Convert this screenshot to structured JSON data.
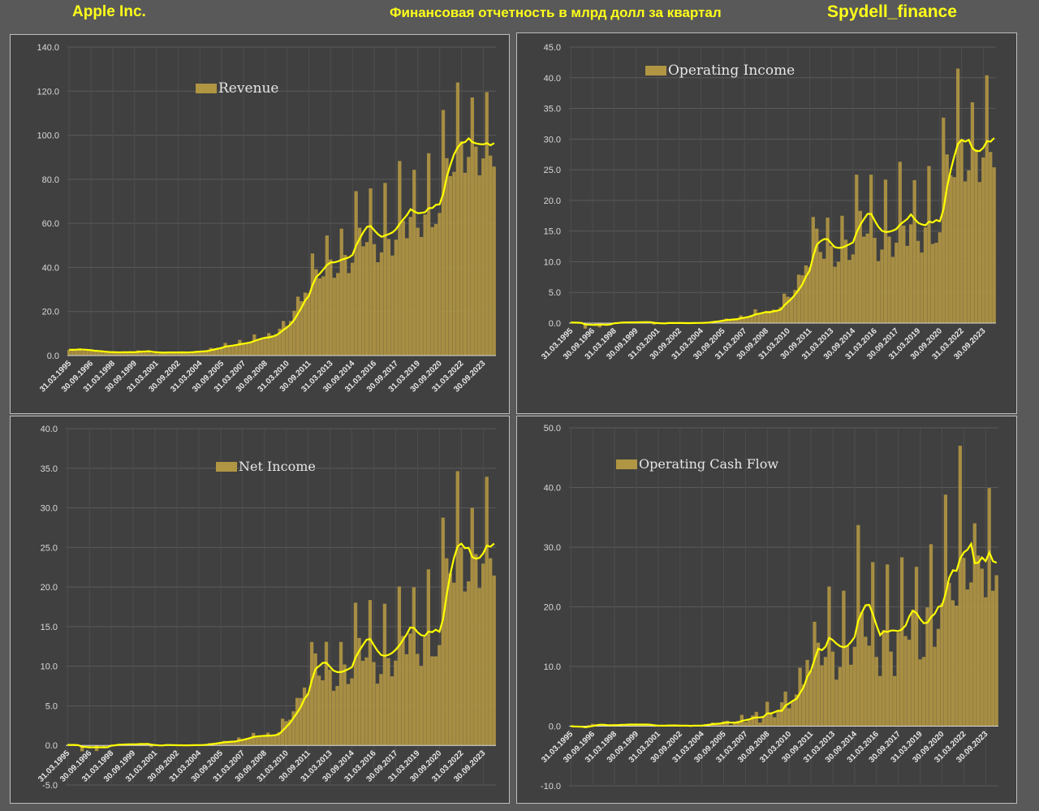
{
  "header": {
    "company": "Apple Inc.",
    "subtitle": "Финансовая отчетность в млрд долл за квартал",
    "source": "Spydell_finance"
  },
  "colors": {
    "bar": "#b09543",
    "moving_average": "#ffff00",
    "panel": "#404040",
    "background": "#595959"
  },
  "chart_data": [
    {
      "type": "bar",
      "title": "",
      "legend": "Revenue",
      "ylim": [
        0,
        140
      ],
      "ystep": 20,
      "y_tick_labels": [
        "0.0",
        "20.0",
        "40.0",
        "60.0",
        "80.0",
        "100.0",
        "120.0",
        "140.0"
      ],
      "x_tick_labels": [
        "31.03.1995",
        "30.09.1996",
        "31.03.1998",
        "30.09.1999",
        "31.03.2001",
        "30.09.2002",
        "31.03.2004",
        "30.09.2005",
        "31.03.2007",
        "30.09.2008",
        "31.03.2010",
        "30.09.2011",
        "31.03.2013",
        "30.09.2014",
        "31.03.2016",
        "30.09.2017",
        "31.03.2019",
        "30.09.2020",
        "31.03.2022",
        "30.09.2023"
      ],
      "moving_average_window": 4,
      "grid": true,
      "values": [
        2.65,
        2.58,
        2.83,
        3.15,
        2.19,
        2.18,
        2.32,
        2.13,
        1.6,
        1.74,
        1.61,
        1.58,
        1.41,
        1.4,
        1.56,
        1.71,
        1.53,
        1.56,
        1.34,
        2.34,
        1.95,
        1.83,
        1.87,
        1.01,
        1.43,
        1.48,
        1.45,
        1.38,
        1.5,
        1.43,
        1.44,
        1.47,
        1.48,
        1.55,
        1.72,
        2.01,
        1.91,
        2.01,
        2.35,
        3.49,
        3.24,
        3.52,
        3.68,
        5.75,
        4.36,
        4.37,
        4.84,
        7.12,
        5.26,
        5.41,
        6.22,
        9.61,
        7.51,
        7.46,
        7.9,
        10.17,
        9.08,
        9.73,
        12.21,
        15.68,
        13.5,
        15.7,
        20.34,
        26.74,
        24.67,
        28.57,
        28.27,
        46.33,
        39.19,
        35.02,
        35.97,
        54.51,
        43.6,
        35.32,
        37.47,
        57.59,
        45.65,
        37.43,
        42.12,
        74.6,
        58.01,
        49.61,
        51.5,
        75.87,
        50.56,
        42.36,
        46.85,
        78.35,
        52.9,
        45.41,
        52.58,
        88.29,
        61.14,
        53.27,
        62.9,
        84.31,
        58.02,
        53.81,
        64.04,
        91.82,
        58.31,
        59.69,
        64.7,
        111.44,
        89.58,
        81.43,
        83.36,
        123.95,
        97.28,
        82.96,
        90.15,
        117.15,
        94.84,
        81.8,
        89.5,
        119.58,
        90.75,
        85.78
      ]
    },
    {
      "type": "bar",
      "title": "",
      "legend": "Operating Income",
      "ylim": [
        0,
        45
      ],
      "ystep": 5,
      "y_tick_labels": [
        "0.0",
        "5.0",
        "10.0",
        "15.0",
        "20.0",
        "25.0",
        "30.0",
        "35.0",
        "40.0",
        "45.0"
      ],
      "x_tick_labels": [
        "31.03.1995",
        "30.09.1996",
        "31.03.1998",
        "30.09.1999",
        "31.03.2001",
        "30.09.2002",
        "31.03.2004",
        "30.09.2005",
        "31.03.2007",
        "30.09.2008",
        "31.03.2010",
        "30.09.2011",
        "31.03.2013",
        "30.09.2014",
        "31.03.2016",
        "30.09.2017",
        "31.03.2019",
        "30.09.2020",
        "31.03.2022",
        "30.09.2023"
      ],
      "moving_average_window": 4,
      "grid": true,
      "values": [
        0.1,
        0.05,
        0.05,
        -0.1,
        -0.9,
        -0.05,
        -0.05,
        -0.2,
        -0.7,
        -0.05,
        -0.15,
        0.05,
        0.05,
        0.1,
        0.1,
        0.15,
        0.15,
        0.1,
        0.1,
        0.2,
        0.2,
        0.15,
        0.1,
        -0.25,
        0.0,
        0.05,
        -0.01,
        0.02,
        0.03,
        0.01,
        -0.01,
        0.0,
        0.0,
        0.0,
        0.03,
        0.05,
        0.05,
        0.07,
        0.15,
        0.3,
        0.38,
        0.4,
        0.5,
        0.74,
        0.55,
        0.6,
        0.7,
        1.25,
        1.0,
        1.1,
        1.3,
        2.25,
        1.5,
        1.6,
        1.9,
        2.0,
        2.2,
        2.0,
        2.6,
        4.8,
        4.3,
        4.2,
        5.4,
        7.9,
        7.8,
        9.4,
        9.1,
        17.3,
        15.4,
        11.6,
        10.5,
        17.2,
        12.6,
        9.2,
        10.0,
        17.5,
        13.6,
        10.3,
        11.2,
        24.2,
        18.3,
        14.1,
        14.6,
        24.2,
        13.9,
        10.1,
        12.0,
        23.4,
        14.1,
        10.8,
        13.1,
        26.3,
        15.9,
        12.6,
        16.1,
        23.3,
        13.4,
        11.5,
        15.6,
        25.6,
        12.9,
        13.1,
        14.8,
        33.5,
        27.5,
        24.1,
        23.8,
        41.5,
        30.0,
        23.1,
        24.9,
        36.0,
        28.3,
        23.0,
        27.0,
        40.4,
        27.9,
        25.4
      ]
    },
    {
      "type": "bar",
      "title": "",
      "legend": "Net Income",
      "ylim": [
        -5,
        40
      ],
      "ystep": 5,
      "y_tick_labels": [
        "-5.0",
        "0.0",
        "5.0",
        "10.0",
        "15.0",
        "20.0",
        "25.0",
        "30.0",
        "35.0",
        "40.0"
      ],
      "x_tick_labels": [
        "31.03.1995",
        "30.09.1996",
        "31.03.1998",
        "30.09.1999",
        "31.03.2001",
        "30.09.2002",
        "31.03.2004",
        "30.09.2005",
        "31.03.2007",
        "30.09.2008",
        "31.03.2010",
        "30.09.2011",
        "31.03.2013",
        "30.09.2014",
        "31.03.2016",
        "30.09.2017",
        "31.03.2019",
        "30.09.2020",
        "31.03.2022",
        "30.09.2023"
      ],
      "moving_average_window": 4,
      "grid": true,
      "values": [
        0.07,
        0.05,
        0.06,
        -0.07,
        -0.74,
        -0.03,
        -0.12,
        -0.03,
        -0.71,
        -0.06,
        -0.16,
        0.05,
        0.06,
        0.1,
        0.11,
        0.15,
        0.14,
        0.2,
        0.11,
        0.18,
        0.23,
        0.2,
        0.17,
        -0.2,
        0.04,
        0.06,
        0.07,
        0.04,
        0.04,
        0.03,
        0.0,
        0.01,
        0.01,
        0.02,
        0.04,
        0.06,
        0.05,
        0.06,
        0.11,
        0.3,
        0.29,
        0.32,
        0.43,
        0.57,
        0.41,
        0.47,
        0.54,
        1.0,
        0.77,
        0.9,
        1.01,
        1.58,
        1.05,
        1.07,
        1.14,
        1.61,
        1.21,
        1.23,
        1.67,
        3.38,
        3.07,
        3.25,
        4.31,
        6.0,
        5.99,
        7.31,
        6.62,
        13.06,
        11.62,
        8.82,
        8.22,
        13.08,
        9.55,
        6.9,
        7.51,
        13.07,
        10.22,
        7.75,
        8.47,
        18.02,
        13.57,
        10.68,
        11.12,
        18.36,
        10.52,
        7.8,
        9.01,
        17.89,
        11.03,
        8.72,
        10.71,
        20.07,
        13.82,
        11.52,
        14.13,
        19.97,
        11.56,
        10.04,
        13.69,
        22.24,
        11.25,
        11.25,
        12.67,
        28.76,
        23.63,
        21.74,
        20.55,
        34.63,
        25.01,
        19.44,
        20.72,
        30.0,
        24.16,
        19.88,
        22.96,
        33.92,
        23.64,
        21.45
      ]
    },
    {
      "type": "bar",
      "title": "",
      "legend": "Operating Cash Flow",
      "ylim": [
        -10,
        50
      ],
      "ystep": 10,
      "y_tick_labels": [
        "-10.0",
        "0.0",
        "10.0",
        "20.0",
        "30.0",
        "40.0",
        "50.0"
      ],
      "x_tick_labels": [
        "31.03.1995",
        "30.09.1996",
        "31.03.1998",
        "30.09.1999",
        "31.03.2001",
        "30.09.2002",
        "31.03.2004",
        "30.09.2005",
        "31.03.2007",
        "30.09.2008",
        "31.03.2010",
        "30.09.2011",
        "31.03.2013",
        "30.09.2014",
        "31.03.2016",
        "30.09.2017",
        "31.03.2019",
        "30.09.2020",
        "31.03.2022",
        "30.09.2023"
      ],
      "moving_average_window": 4,
      "grid": true,
      "values": [
        0.0,
        -0.1,
        -0.1,
        -0.2,
        -0.3,
        0.2,
        0.4,
        0.3,
        0.1,
        0.2,
        0.1,
        0.2,
        0.2,
        0.2,
        0.3,
        0.3,
        0.3,
        0.2,
        0.3,
        0.3,
        0.3,
        0.2,
        0.2,
        -0.1,
        0.1,
        0.1,
        0.2,
        0.1,
        0.1,
        0.1,
        0.0,
        0.1,
        0.1,
        0.0,
        0.2,
        0.1,
        0.1,
        0.3,
        0.4,
        0.6,
        0.3,
        0.5,
        0.8,
        0.9,
        0.2,
        0.5,
        0.9,
        1.9,
        0.7,
        1.0,
        1.8,
        2.4,
        0.6,
        1.5,
        4.1,
        2.3,
        1.5,
        2.5,
        4.0,
        5.8,
        3.0,
        4.2,
        5.3,
        9.8,
        7.0,
        11.1,
        9.3,
        17.5,
        14.0,
        10.2,
        11.6,
        23.4,
        12.5,
        7.8,
        9.9,
        22.7,
        13.5,
        10.3,
        13.3,
        33.7,
        19.1,
        15.0,
        13.5,
        27.5,
        11.6,
        8.4,
        16.1,
        27.1,
        12.5,
        8.4,
        15.7,
        28.3,
        15.1,
        14.5,
        19.5,
        26.7,
        11.2,
        11.6,
        19.9,
        30.5,
        13.3,
        16.3,
        20.6,
        38.8,
        24.0,
        21.1,
        20.2,
        47.0,
        28.2,
        22.9,
        24.1,
        34.0,
        28.6,
        26.4,
        21.6,
        39.9,
        22.7,
        25.3
      ]
    }
  ]
}
